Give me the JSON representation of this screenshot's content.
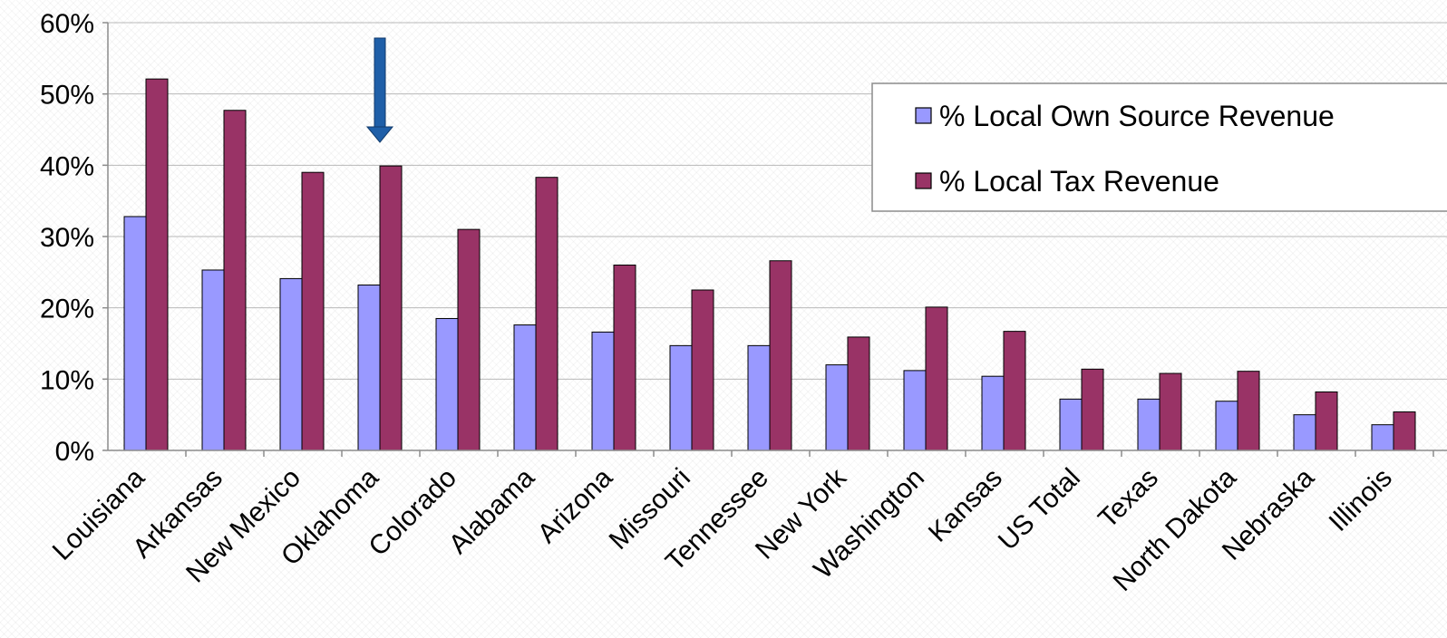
{
  "chart_data": {
    "type": "bar",
    "title": "",
    "xlabel": "",
    "ylabel": "",
    "ylim": [
      0,
      60
    ],
    "yticks": [
      "0%",
      "10%",
      "20%",
      "30%",
      "40%",
      "50%",
      "60%"
    ],
    "grid": true,
    "legend_position": "top-right",
    "categories": [
      "Louisiana",
      "Arkansas",
      "New Mexico",
      "Oklahoma",
      "Colorado",
      "Alabama",
      "Arizona",
      "Missouri",
      "Tennessee",
      "New York",
      "Washington",
      "Kansas",
      "US Total",
      "Texas",
      "North Dakota",
      "Nebraska",
      "Illinois"
    ],
    "series": [
      {
        "name": "% Local Own Source Revenue",
        "color": "#9999ff",
        "values": [
          32.8,
          25.3,
          24.1,
          23.2,
          18.5,
          17.6,
          16.6,
          14.7,
          14.7,
          12.0,
          11.2,
          10.4,
          7.2,
          7.2,
          6.9,
          5.0,
          3.6
        ]
      },
      {
        "name": "% Local Tax Revenue",
        "color": "#993366",
        "values": [
          52.1,
          47.7,
          39.0,
          39.9,
          31.0,
          38.3,
          26.0,
          22.5,
          26.6,
          15.9,
          20.1,
          16.7,
          11.4,
          10.8,
          11.1,
          8.2,
          5.4
        ]
      }
    ],
    "annotation": {
      "type": "arrow",
      "target_category": "Oklahoma",
      "color": "#1f5fa8"
    }
  }
}
